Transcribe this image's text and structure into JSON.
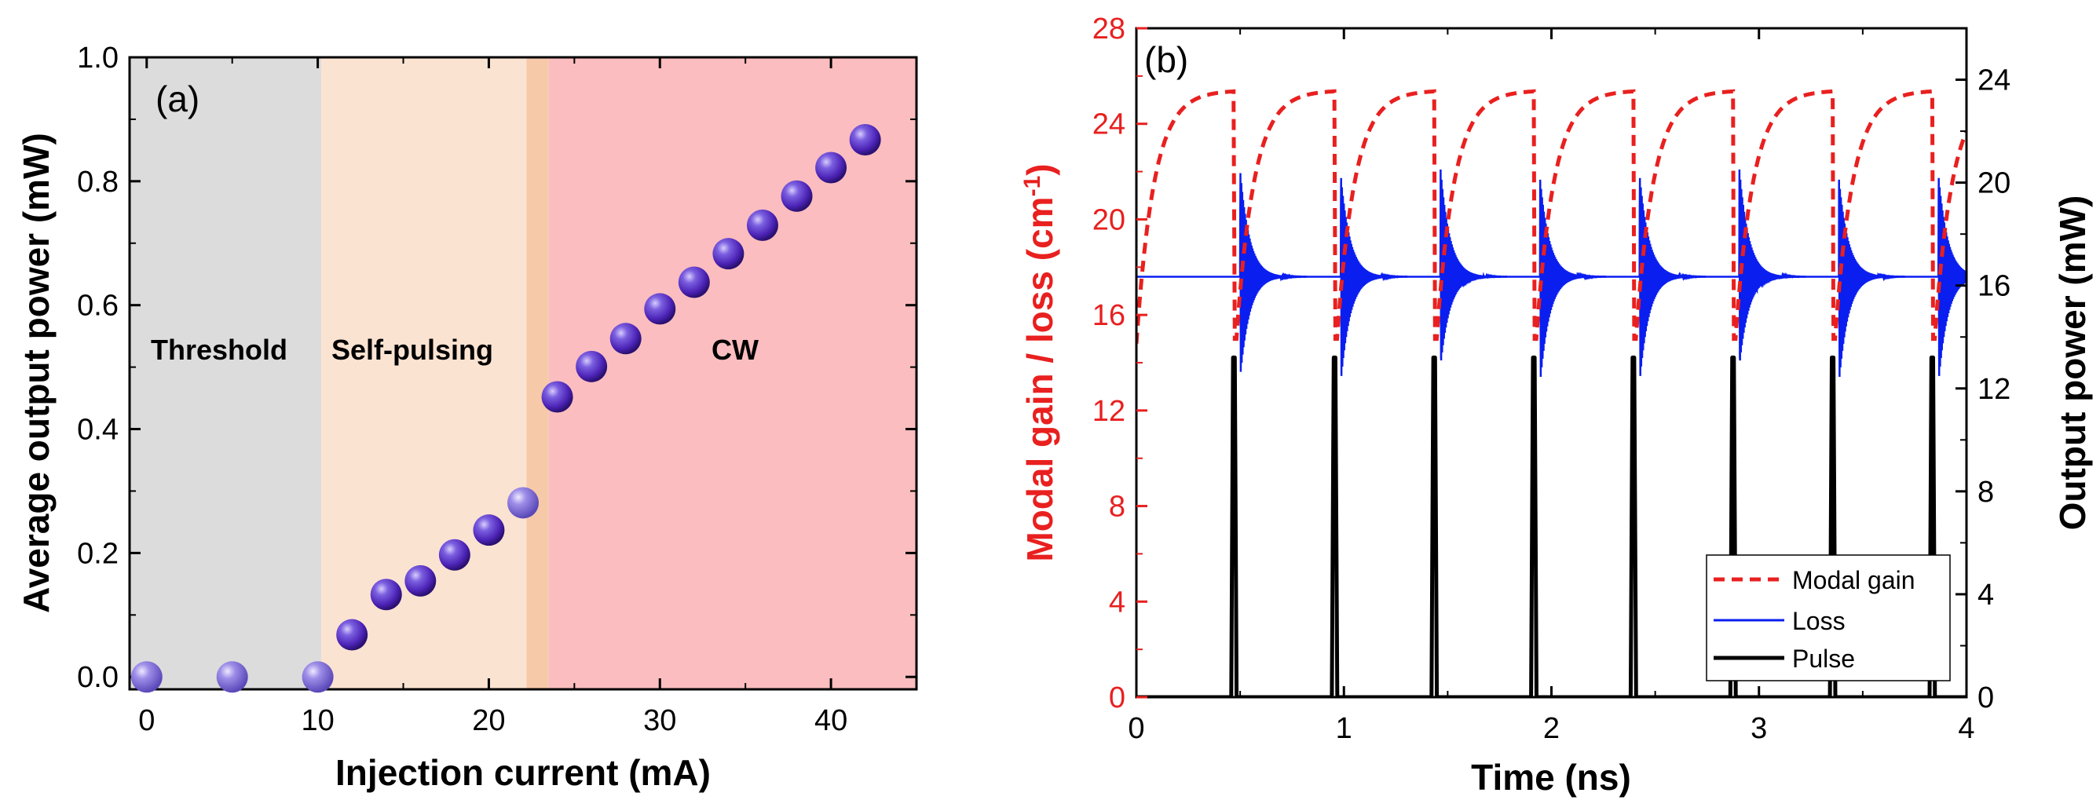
{
  "chart_data": [
    {
      "panel": "(a)",
      "type": "scatter",
      "xlabel": "Injection current (mA)",
      "ylabel": "Average output power (mW)",
      "xlim": [
        -1,
        45
      ],
      "ylim": [
        -0.02,
        1.0
      ],
      "x_ticks": [
        "0",
        "10",
        "20",
        "30",
        "40"
      ],
      "y_ticks": [
        "0.0",
        "0.2",
        "0.4",
        "0.6",
        "0.8",
        "1.0"
      ],
      "regions": [
        {
          "label": "Threshold",
          "x_start": -1,
          "x_end": 10.2,
          "color": "#dcdcdc"
        },
        {
          "label": "Self-pulsing",
          "x_start": 10.2,
          "x_end": 22.2,
          "color": "#fbe3d2"
        },
        {
          "label": "",
          "x_start": 22.2,
          "x_end": 23.5,
          "color": "#f6c9a8"
        },
        {
          "label": "CW",
          "x_start": 23.5,
          "x_end": 45,
          "color": "#fbbdbf"
        }
      ],
      "region_text": {
        "threshold": "Threshold",
        "self_pulsing": "Self-pulsing",
        "cw": "CW"
      },
      "points": [
        {
          "x": 0,
          "y": 0.0
        },
        {
          "x": 5,
          "y": 0.0
        },
        {
          "x": 10,
          "y": 0.0
        },
        {
          "x": 12,
          "y": 0.068
        },
        {
          "x": 14,
          "y": 0.133
        },
        {
          "x": 16,
          "y": 0.155
        },
        {
          "x": 18,
          "y": 0.197
        },
        {
          "x": 20,
          "y": 0.237
        },
        {
          "x": 22,
          "y": 0.281
        },
        {
          "x": 24,
          "y": 0.452
        },
        {
          "x": 26,
          "y": 0.501
        },
        {
          "x": 28,
          "y": 0.546
        },
        {
          "x": 30,
          "y": 0.594
        },
        {
          "x": 32,
          "y": 0.637
        },
        {
          "x": 34,
          "y": 0.683
        },
        {
          "x": 36,
          "y": 0.729
        },
        {
          "x": 38,
          "y": 0.776
        },
        {
          "x": 40,
          "y": 0.822
        },
        {
          "x": 42,
          "y": 0.867
        }
      ],
      "marker_color": "#4b22b5"
    },
    {
      "panel": "(b)",
      "type": "line",
      "xlabel": "Time (ns)",
      "ylabel_left": "Modal gain / loss (cm",
      "ylabel_left_sup": "-1",
      "ylabel_left_end": ")",
      "ylabel_right": "Output power (mW)",
      "xlim": [
        0,
        4
      ],
      "ylim_left": [
        0,
        28
      ],
      "ylim_right": [
        0,
        26
      ],
      "x_ticks": [
        "0",
        "1",
        "2",
        "3",
        "4"
      ],
      "y_ticks_left": [
        "0",
        "4",
        "8",
        "12",
        "16",
        "20",
        "24",
        "28"
      ],
      "y_ticks_right": [
        "0",
        "4",
        "8",
        "12",
        "16",
        "20",
        "24"
      ],
      "series": [
        {
          "name": "Modal gain",
          "style": "dashed",
          "color": "#e8201f",
          "start_value": 14.8,
          "plateau_max": 25.4,
          "drop_value": 15.0
        },
        {
          "name": "Loss",
          "style": "solid",
          "color": "#0a1ef0",
          "baseline": 17.6,
          "overshoot_max": 22.2,
          "overshoot_min": 13.2
        },
        {
          "name": "Pulse",
          "style": "solid",
          "color": "#000000",
          "peak_mw": 13.2,
          "pulse_times_ns": [
            0.47,
            0.955,
            1.435,
            1.915,
            2.395,
            2.875,
            3.355,
            3.835
          ]
        }
      ],
      "legend": [
        "Modal gain",
        "Loss",
        "Pulse"
      ]
    }
  ]
}
